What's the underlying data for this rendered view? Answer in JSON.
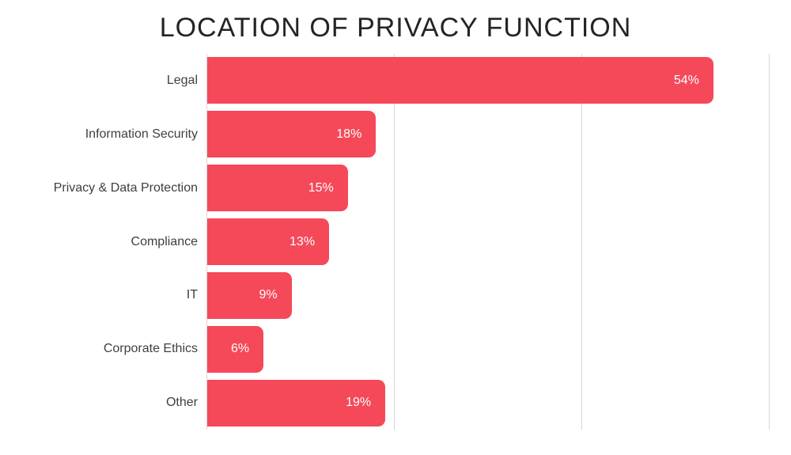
{
  "title": "LOCATION OF PRIVACY FUNCTION",
  "colors": {
    "bar": "#f5495a",
    "gridline": "#d9d9d9",
    "title_text": "#242424",
    "category_text": "#3f3f3f",
    "value_text": "#fefefe",
    "background": "#ffffff"
  },
  "chart_data": {
    "type": "bar",
    "orientation": "horizontal",
    "title": "LOCATION OF PRIVACY FUNCTION",
    "categories": [
      "Legal",
      "Information Security",
      "Privacy & Data Protection",
      "Compliance",
      "IT",
      "Corporate Ethics",
      "Other"
    ],
    "values": [
      54,
      18,
      15,
      13,
      9,
      6,
      19
    ],
    "value_labels": [
      "54%",
      "18%",
      "15%",
      "13%",
      "9%",
      "6%",
      "19%"
    ],
    "xlabel": "",
    "ylabel": "",
    "xlim": [
      0,
      60
    ],
    "x_gridlines": [
      0,
      20,
      40,
      60
    ],
    "grid": "vertical-only",
    "legend": "none",
    "bar_value_label_position": "inside-right"
  }
}
